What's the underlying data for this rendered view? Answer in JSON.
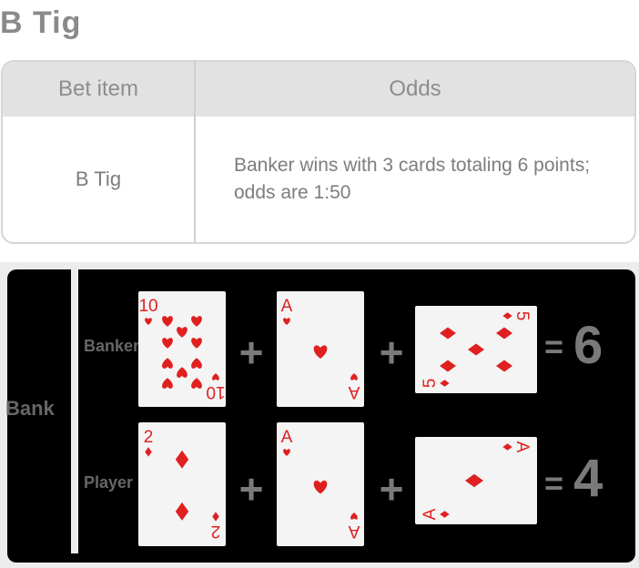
{
  "title": "B Tig",
  "table": {
    "headers": [
      "Bet item",
      "Odds"
    ],
    "row": {
      "item": "B Tig",
      "odds": "Banker wins with 3 cards totaling 6 points; odds are 1:50"
    }
  },
  "board": {
    "side_label": "Bank",
    "rows": [
      {
        "label": "Banker",
        "cards": [
          {
            "rank": "10",
            "suit": "heart"
          },
          {
            "rank": "A",
            "suit": "heart"
          },
          {
            "rank": "5",
            "suit": "diamond"
          }
        ],
        "plus1": "+",
        "plus2": "+",
        "equals": "=",
        "result": "6"
      },
      {
        "label": "Player",
        "cards": [
          {
            "rank": "2",
            "suit": "diamond"
          },
          {
            "rank": "A",
            "suit": "heart"
          },
          {
            "rank": "A",
            "suit": "diamond"
          }
        ],
        "plus1": "+",
        "plus2": "+",
        "equals": "=",
        "result": "4"
      }
    ]
  },
  "colors": {
    "suit_red": "#e02020",
    "card_bg": "#f4f4f4",
    "board_bg": "#000000",
    "header_bg": "#e2e2e2"
  }
}
